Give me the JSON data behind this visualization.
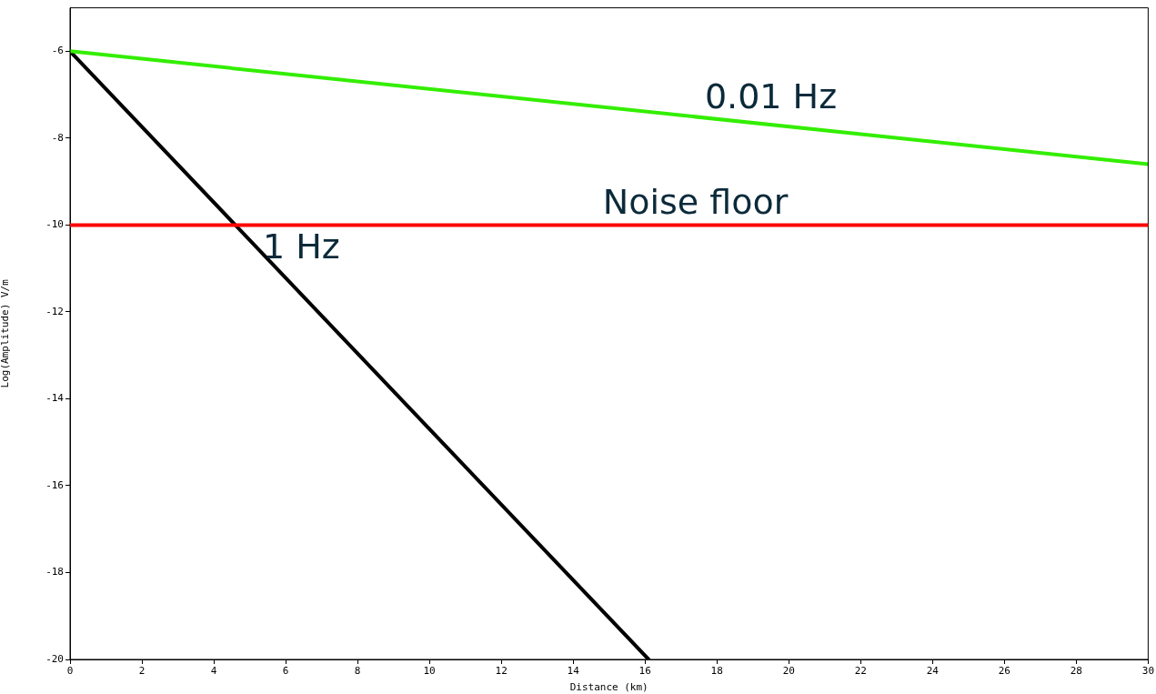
{
  "chart_data": {
    "type": "line",
    "xlabel": "Distance (km)",
    "ylabel": "Log(Amplitude) V/m",
    "xlim": [
      0,
      30
    ],
    "xticks": [
      0,
      2,
      4,
      6,
      8,
      10,
      12,
      14,
      16,
      18,
      20,
      22,
      24,
      26,
      28,
      30
    ],
    "ylim": [
      -20,
      -5
    ],
    "yticks": [
      -6,
      -8,
      -10,
      -12,
      -14,
      -16,
      -18,
      -20
    ],
    "series": [
      {
        "name": "0.01 Hz",
        "color": "#33ee00",
        "x": [
          0,
          30
        ],
        "values": [
          -6,
          -8.6
        ]
      },
      {
        "name": "1 Hz",
        "color": "#000000",
        "x": [
          0,
          16.1
        ],
        "values": [
          -6,
          -20
        ]
      }
    ],
    "ref_lines": [
      {
        "axis": "y",
        "value": -10,
        "label": "Noise floor",
        "color": "#ff0000"
      }
    ],
    "grid": false,
    "legend": false,
    "marker": "none",
    "line_style": "solid"
  }
}
